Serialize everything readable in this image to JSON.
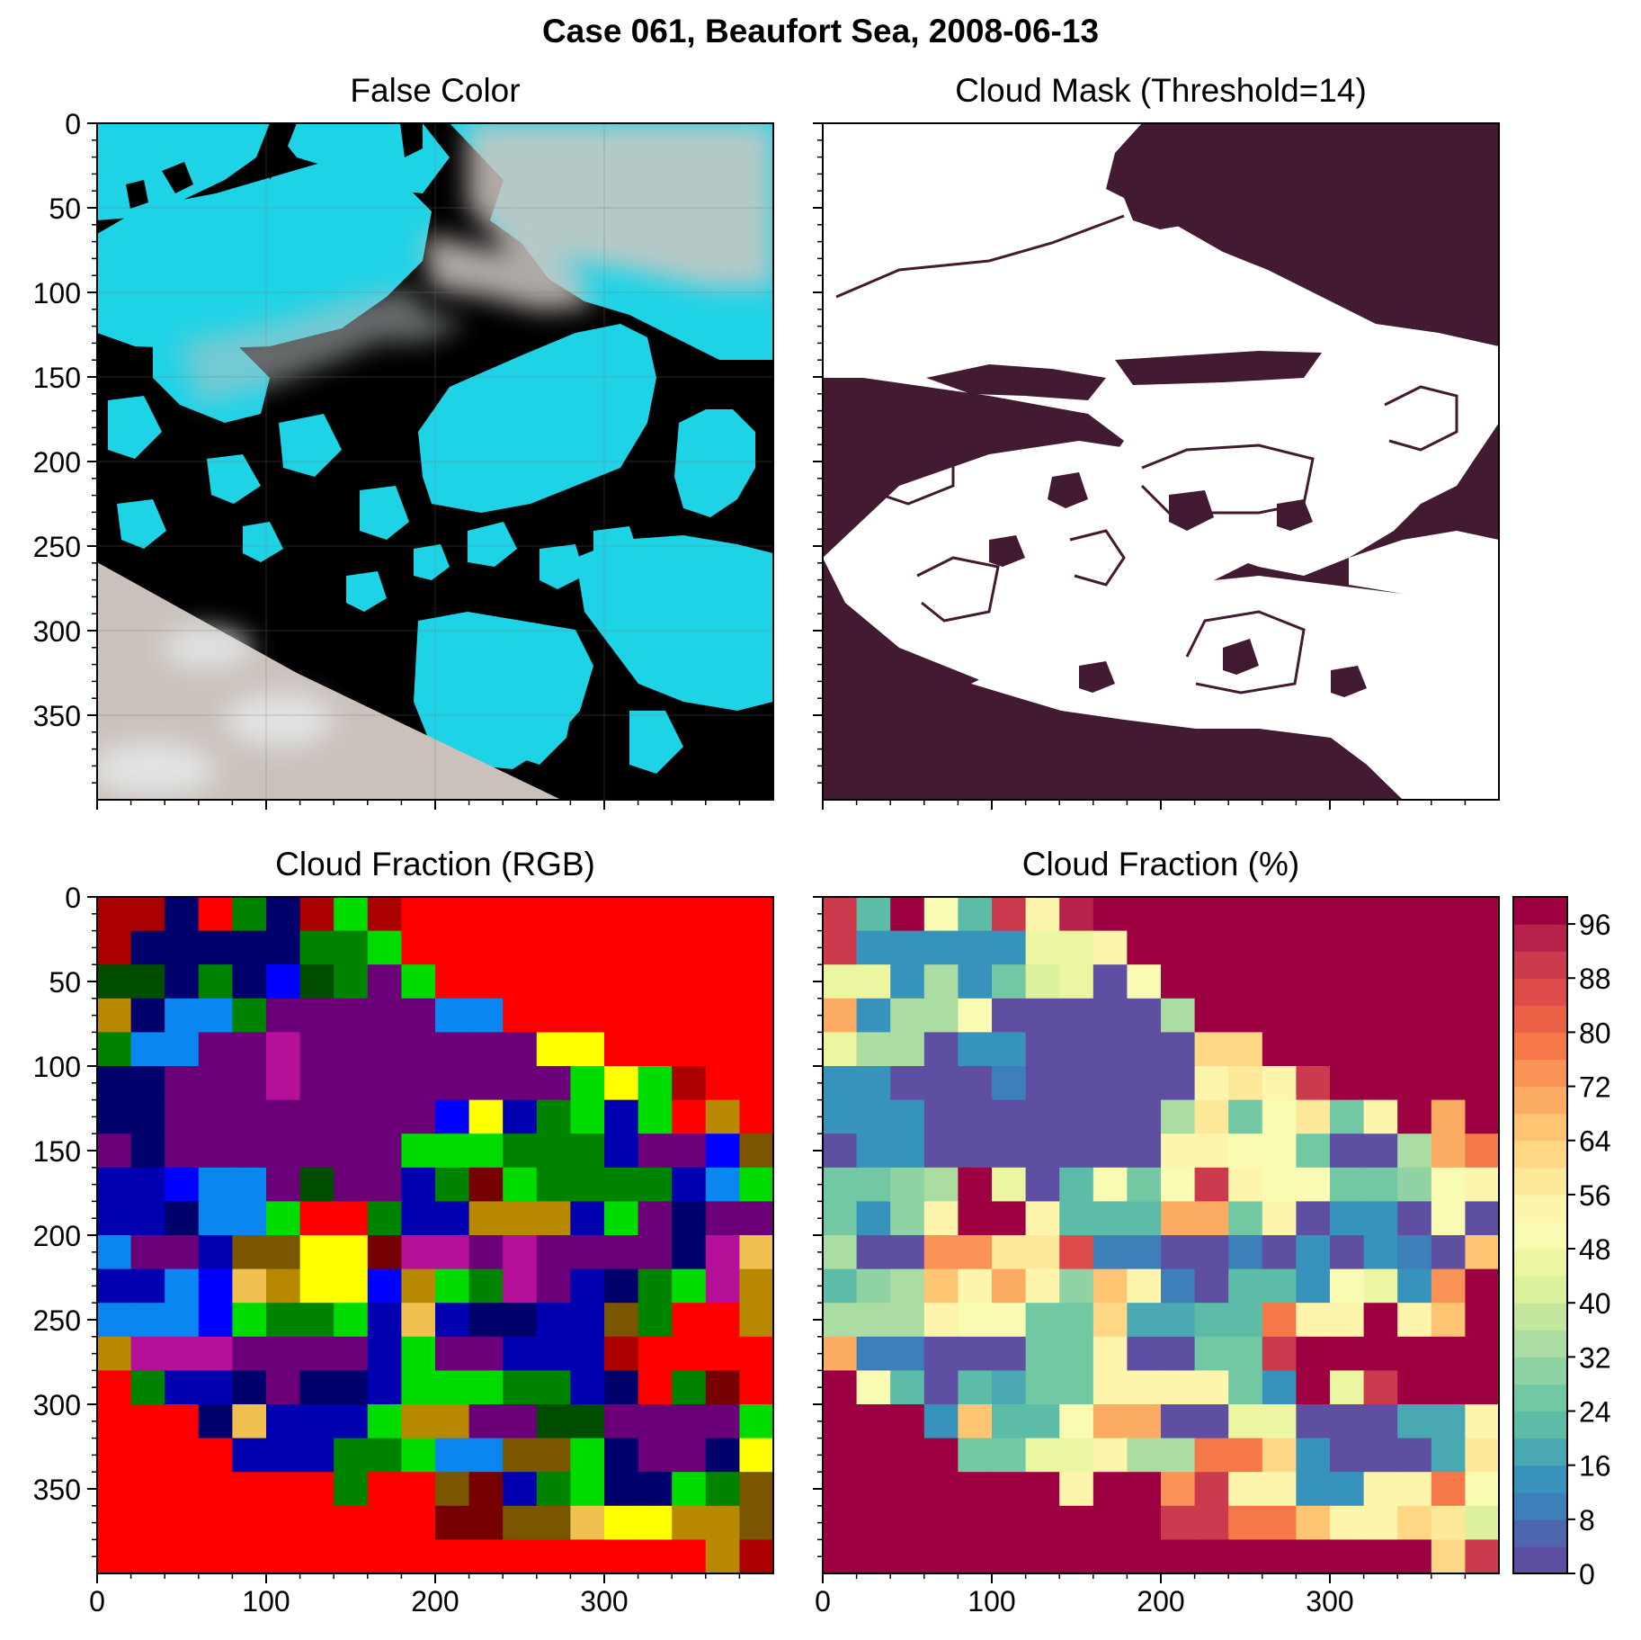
{
  "figure": {
    "suptitle": "Case 061, Beaufort Sea, 2008-06-13"
  },
  "chart_data": [
    {
      "type": "image",
      "title": "False Color",
      "xlim": [
        0,
        400
      ],
      "ylim": [
        400,
        0
      ],
      "xticks": [
        0,
        100,
        200,
        300
      ],
      "xtick_labels_shown": false,
      "yticks": [
        0,
        50,
        100,
        150,
        200,
        250,
        300,
        350
      ],
      "grid": true,
      "description_colors": {
        "ice": "#1fd3e6",
        "water": "#000000",
        "cloud": "#cfc7c2"
      }
    },
    {
      "type": "heatmap",
      "title": "Cloud Mask (Threshold=14)",
      "xlim": [
        0,
        400
      ],
      "ylim": [
        400,
        0
      ],
      "xticks": [
        0,
        100,
        200,
        300
      ],
      "xtick_labels_shown": false,
      "yticks": [
        0,
        50,
        100,
        150,
        200,
        250,
        300,
        350
      ],
      "ytick_labels_shown": false,
      "colors": {
        "cloud": "#421a31",
        "clear": "#ffffff"
      }
    },
    {
      "type": "heatmap",
      "title": "Cloud Fraction (RGB)",
      "xlim": [
        0,
        400
      ],
      "ylim": [
        400,
        0
      ],
      "xticks": [
        0,
        100,
        200,
        300
      ],
      "yticks": [
        0,
        50,
        100,
        150,
        200,
        250,
        300,
        350
      ],
      "grid_shape": [
        20,
        20
      ],
      "palette": {
        "R": "#ff0000",
        "r": "#aa0000",
        "m": "#760000",
        "k": "#00006c",
        "b": "#0000b0",
        "B": "#0000ff",
        "s": "#0a86f0",
        "p": "#6c0078",
        "P": "#b6109a",
        "d": "#004c00",
        "g": "#008400",
        "G": "#00dc00",
        "o": "#b88800",
        "t": "#7a5600",
        "Y": "#ffff00",
        "y": "#f0c050"
      },
      "rows": [
        "rrkRgkrGrRRRRRRRRRRR",
        "rkkkkkggGRRRRRRRRRRR",
        "ddkgkBdgpGRRRRRRRRRR",
        "okssgpppppssRRRRRRRR",
        "gssppPpppppppYYRRRRR",
        "kkpppPppppppppGYGrRR",
        "kkppppppppBYbgGbGRoR",
        "pkpppppppGGGgggbppBt",
        "bbBsspdppbgmGggggbsG",
        "bbkssGRRgbbooobGpkpp",
        "sppbttYYmPPpPppppkPy",
        "bbsByoYYBoGgPpbkgGPo",
        "sssBGggGbybkkbbtgRRo",
        "oPPPppppbGppbbbrRRRR",
        "RgbbkpkkbGGGggbkRgmR",
        "RRRkybbbGooppddppppG",
        "RRRRbbbggGssttGkppkY",
        "RRRRRRRgRRtmbgGkkGgt",
        "RRRRRRRRRRmmttyYYoot",
        "RRRRRRRRRRRRRRRRRRor"
      ]
    },
    {
      "type": "heatmap",
      "title": "Cloud Fraction (%)",
      "xlim": [
        0,
        400
      ],
      "ylim": [
        400,
        0
      ],
      "xticks": [
        0,
        100,
        200,
        300
      ],
      "yticks": [
        0,
        50,
        100,
        150,
        200,
        250,
        300,
        350
      ],
      "ytick_labels_shown": false,
      "colormap": "Spectral_r",
      "vmin": 0,
      "vmax": 100,
      "colorbar": {
        "ticks": [
          0,
          8,
          16,
          24,
          32,
          40,
          48,
          56,
          64,
          72,
          80,
          88,
          96
        ],
        "levels": 25,
        "colors": [
          "#5e4fa2",
          "#4e66ad",
          "#3d7fb9",
          "#3793bb",
          "#49a8b1",
          "#5cbca7",
          "#73c8a4",
          "#8fd2a4",
          "#abdda3",
          "#c4e79e",
          "#dbf19b",
          "#ecf59f",
          "#f8fbb1",
          "#fef5ad",
          "#fee89a",
          "#fed785",
          "#fdc471",
          "#fcac62",
          "#f99355",
          "#f57849",
          "#ea6146",
          "#dd4b4a",
          "#cc3a4d",
          "#b6224b",
          "#9e0142"
        ]
      },
      "rows": [
        [
          88,
          20,
          100,
          48,
          22,
          90,
          52,
          92,
          100,
          100,
          100,
          100,
          100,
          100,
          100,
          100,
          100,
          100,
          100,
          100
        ],
        [
          90,
          14,
          14,
          14,
          14,
          14,
          46,
          46,
          52,
          100,
          100,
          100,
          100,
          100,
          100,
          100,
          100,
          100,
          100,
          100
        ],
        [
          44,
          44,
          14,
          33,
          14,
          26,
          42,
          44,
          2,
          50,
          100,
          100,
          100,
          100,
          100,
          100,
          100,
          100,
          100,
          100
        ],
        [
          68,
          14,
          34,
          34,
          48,
          2,
          2,
          2,
          2,
          2,
          34,
          100,
          100,
          100,
          100,
          100,
          100,
          100,
          100,
          100
        ],
        [
          46,
          34,
          34,
          2,
          14,
          14,
          2,
          2,
          2,
          2,
          2,
          60,
          60,
          100,
          100,
          100,
          100,
          100,
          100,
          100
        ],
        [
          14,
          14,
          2,
          2,
          2,
          10,
          2,
          2,
          2,
          2,
          2,
          54,
          58,
          54,
          88,
          100,
          100,
          100,
          100,
          100
        ],
        [
          14,
          14,
          14,
          2,
          2,
          2,
          2,
          2,
          2,
          2,
          32,
          56,
          24,
          50,
          56,
          24,
          52,
          100,
          68,
          100
        ],
        [
          2,
          14,
          14,
          2,
          2,
          2,
          2,
          2,
          2,
          2,
          54,
          54,
          50,
          50,
          24,
          2,
          2,
          34,
          68,
          78
        ],
        [
          24,
          24,
          30,
          32,
          100,
          44,
          2,
          22,
          48,
          24,
          48,
          90,
          52,
          48,
          50,
          24,
          24,
          30,
          48,
          52
        ],
        [
          24,
          14,
          30,
          54,
          100,
          100,
          52,
          22,
          22,
          22,
          68,
          68,
          24,
          52,
          2,
          14,
          14,
          2,
          50,
          2
        ],
        [
          34,
          2,
          2,
          74,
          74,
          58,
          58,
          86,
          8,
          8,
          2,
          2,
          8,
          2,
          14,
          2,
          14,
          8,
          2,
          66
        ],
        [
          22,
          30,
          32,
          64,
          52,
          68,
          54,
          30,
          64,
          54,
          10,
          2,
          22,
          22,
          14,
          48,
          46,
          14,
          72,
          100
        ],
        [
          32,
          32,
          32,
          54,
          50,
          50,
          26,
          24,
          62,
          16,
          16,
          22,
          22,
          78,
          54,
          54,
          100,
          54,
          66,
          100
        ],
        [
          70,
          10,
          10,
          2,
          2,
          2,
          24,
          24,
          52,
          2,
          2,
          24,
          24,
          88,
          100,
          100,
          100,
          100,
          100,
          100
        ],
        [
          100,
          48,
          22,
          2,
          22,
          16,
          24,
          24,
          52,
          52,
          52,
          52,
          24,
          14,
          100,
          46,
          88,
          100,
          100,
          100
        ],
        [
          100,
          100,
          100,
          14,
          64,
          22,
          22,
          50,
          70,
          70,
          2,
          2,
          44,
          44,
          2,
          2,
          2,
          16,
          16,
          52
        ],
        [
          100,
          100,
          100,
          100,
          24,
          24,
          46,
          46,
          52,
          34,
          34,
          78,
          78,
          60,
          14,
          2,
          2,
          2,
          16,
          58
        ],
        [
          100,
          100,
          100,
          100,
          100,
          100,
          100,
          52,
          100,
          100,
          74,
          88,
          52,
          52,
          14,
          14,
          54,
          54,
          76,
          48
        ],
        [
          100,
          100,
          100,
          100,
          100,
          100,
          100,
          100,
          100,
          100,
          88,
          88,
          76,
          76,
          64,
          54,
          54,
          60,
          58,
          40
        ],
        [
          100,
          100,
          100,
          100,
          100,
          100,
          100,
          100,
          100,
          100,
          100,
          100,
          100,
          100,
          100,
          100,
          100,
          100,
          60,
          90
        ]
      ]
    }
  ]
}
